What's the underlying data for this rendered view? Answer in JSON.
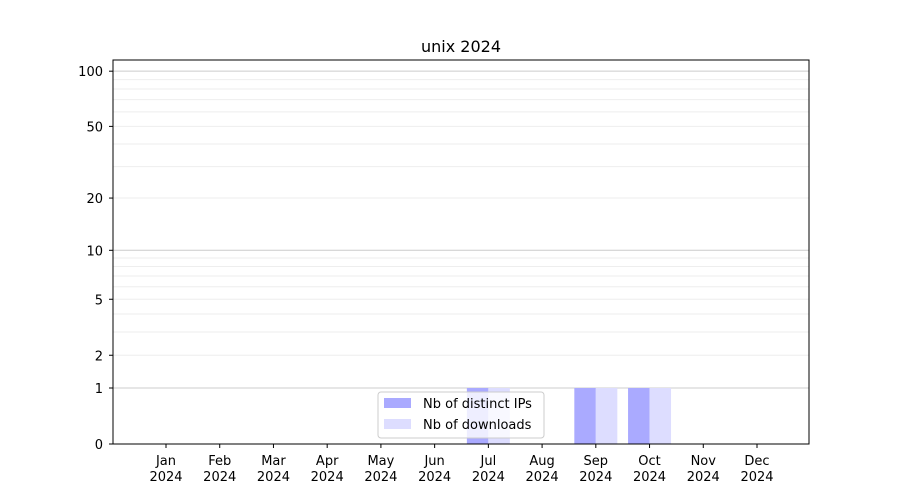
{
  "chart_data": {
    "type": "bar",
    "title": "unix 2024",
    "xlabel": "",
    "ylabel": "",
    "yscale": "log(1+y)",
    "ylim": [
      0,
      115
    ],
    "yticks": [
      0,
      1,
      2,
      5,
      10,
      20,
      50,
      100
    ],
    "grid": true,
    "legend_placement": "lower-center",
    "categories": [
      "Jan\n2024",
      "Feb\n2024",
      "Mar\n2024",
      "Apr\n2024",
      "May\n2024",
      "Jun\n2024",
      "Jul\n2024",
      "Aug\n2024",
      "Sep\n2024",
      "Oct\n2024",
      "Nov\n2024",
      "Dec\n2024"
    ],
    "series": [
      {
        "name": "Nb of distinct IPs",
        "color": "#aaaaff",
        "values": [
          0,
          0,
          0,
          0,
          0,
          0,
          1,
          0,
          1,
          1,
          0,
          0
        ]
      },
      {
        "name": "Nb of downloads",
        "color": "#ddddff",
        "values": [
          0,
          0,
          0,
          0,
          0,
          0,
          1,
          0,
          1,
          1,
          0,
          0
        ]
      }
    ]
  }
}
